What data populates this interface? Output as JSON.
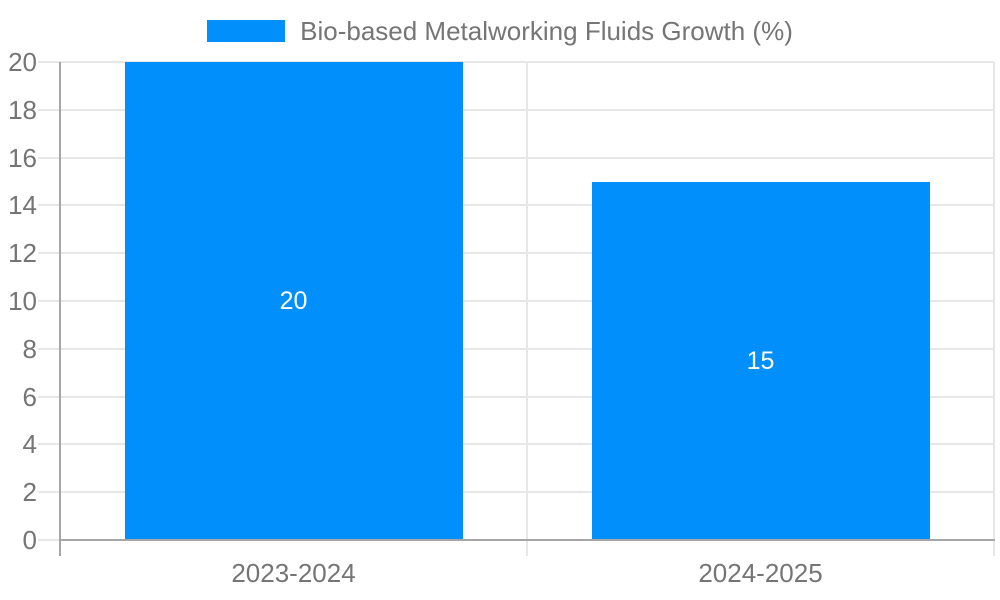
{
  "colors": {
    "bar": "#008FFB",
    "bar_label_text": "#ffffff",
    "axis_line": "#a6a6a6",
    "gridline": "#e7e7e7",
    "tick_label_text": "#757575",
    "background": "#ffffff"
  },
  "legend": {
    "swatch_icon": "series-color-swatch",
    "label": "Bio-based Metalworking Fluids Growth (%)"
  },
  "chart_data": {
    "type": "bar",
    "title": "Bio-based Metalworking Fluids Growth (%)",
    "categories": [
      "2023-2024",
      "2024-2025"
    ],
    "series": [
      {
        "name": "Bio-based Metalworking Fluids Growth (%)",
        "values": [
          20,
          15
        ]
      }
    ],
    "data_labels": [
      "20",
      "15"
    ],
    "xlabel": "",
    "ylabel": "",
    "ylim": [
      0,
      20
    ],
    "ytick_step": 2,
    "yticks": [
      0,
      2,
      4,
      6,
      8,
      10,
      12,
      14,
      16,
      18,
      20
    ],
    "ytick_labels": [
      "0",
      "2",
      "4",
      "6",
      "8",
      "10",
      "12",
      "14",
      "16",
      "18",
      "20"
    ],
    "grid": true,
    "legend_position": "top-center"
  }
}
